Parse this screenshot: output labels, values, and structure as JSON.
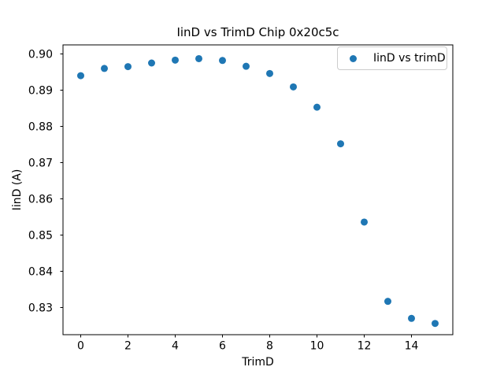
{
  "chart_data": {
    "type": "scatter",
    "title": "IinD vs TrimD Chip 0x20c5c",
    "xlabel": "TrimD",
    "ylabel": "IinD (A)",
    "legend_label": "IinD vs trimD",
    "legend_position": "upper right",
    "marker_color": "#1f77b4",
    "background_color": "#ffffff",
    "grid": false,
    "x": [
      0,
      1,
      2,
      3,
      4,
      5,
      6,
      7,
      8,
      9,
      10,
      11,
      12,
      13,
      14,
      15
    ],
    "y": [
      0.894,
      0.896,
      0.8965,
      0.8975,
      0.8983,
      0.8987,
      0.8982,
      0.8966,
      0.8946,
      0.8909,
      0.8853,
      0.8752,
      0.8536,
      0.8317,
      0.827,
      0.8256
    ],
    "xlim": [
      -0.75,
      15.75
    ],
    "ylim": [
      0.8225,
      0.9025
    ],
    "x_ticks": [
      0,
      2,
      4,
      6,
      8,
      10,
      12,
      14
    ],
    "x_tick_labels": [
      "0",
      "2",
      "4",
      "6",
      "8",
      "10",
      "12",
      "14"
    ],
    "y_ticks": [
      0.83,
      0.84,
      0.85,
      0.86,
      0.87,
      0.88,
      0.89,
      0.9
    ],
    "y_tick_labels": [
      "0.83",
      "0.84",
      "0.85",
      "0.86",
      "0.87",
      "0.88",
      "0.89",
      "0.90"
    ]
  }
}
